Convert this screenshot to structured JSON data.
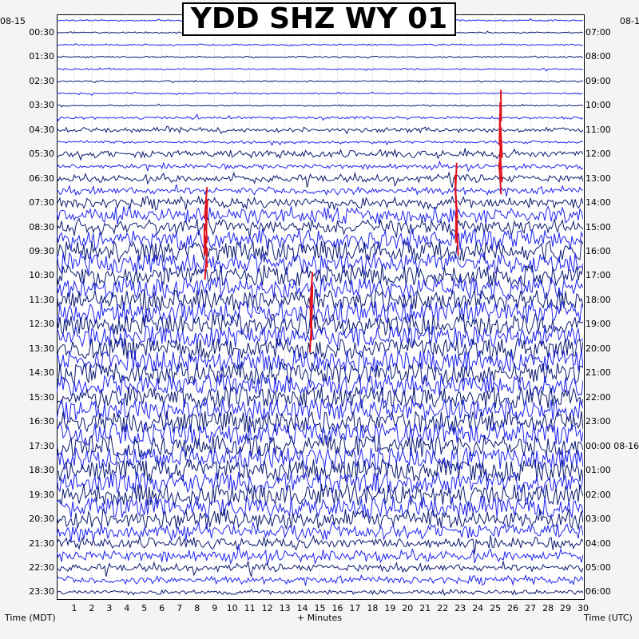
{
  "title": "YDD SHZ WY 01",
  "left_date": "08-15",
  "right_date": "08-1",
  "right_date_mid": "08-16",
  "xaxis": {
    "left_label": "Time (MDT)",
    "center_label": "+ Minutes",
    "right_label": "Time (UTC)",
    "ticks": [
      "1",
      "2",
      "3",
      "4",
      "5",
      "6",
      "7",
      "8",
      "9",
      "10",
      "11",
      "12",
      "13",
      "14",
      "15",
      "16",
      "17",
      "18",
      "19",
      "20",
      "21",
      "22",
      "23",
      "24",
      "25",
      "26",
      "27",
      "28",
      "29",
      "30"
    ]
  },
  "colors": {
    "dark": "#0b1a6e",
    "bright": "#1f24f0",
    "event": "#e0101a",
    "grid": "#9a9a9a"
  },
  "chart_data": {
    "type": "helicorder",
    "title": "YDD SHZ WY 01",
    "xlabel": "+ Minutes",
    "xlim": [
      0,
      30
    ],
    "row_minutes": 30,
    "rows_count": 48,
    "left_time_labels": [
      "00:30",
      "01:30",
      "02:30",
      "03:30",
      "04:30",
      "05:30",
      "06:30",
      "07:30",
      "08:30",
      "09:30",
      "10:30",
      "11:30",
      "12:30",
      "13:30",
      "14:30",
      "15:30",
      "16:30",
      "17:30",
      "18:30",
      "19:30",
      "20:30",
      "21:30",
      "22:30",
      "23:30"
    ],
    "right_time_labels": [
      "07:00",
      "08:00",
      "09:00",
      "10:00",
      "11:00",
      "12:00",
      "13:00",
      "14:00",
      "15:00",
      "16:00",
      "17:00",
      "18:00",
      "19:00",
      "20:00",
      "21:00",
      "22:00",
      "23:00",
      "00:00 08-16",
      "01:00",
      "02:00",
      "03:00",
      "04:00",
      "05:00",
      "06:00"
    ],
    "row_amplitude_level": [
      1,
      1,
      1,
      1,
      1,
      1,
      1,
      1,
      2,
      3,
      2,
      4,
      3,
      4,
      4,
      5,
      6,
      6,
      7,
      8,
      8,
      8,
      8,
      8,
      9,
      9,
      9,
      9,
      9,
      9,
      9,
      9,
      9,
      9,
      9,
      9,
      9,
      9,
      9,
      9,
      8,
      7,
      6,
      5,
      5,
      4,
      4,
      3
    ],
    "events": [
      {
        "minute": 8.5,
        "rows": [
          15,
          16,
          17,
          18,
          19,
          20
        ]
      },
      {
        "minute": 25.3,
        "rows": [
          7,
          8,
          9,
          10,
          11,
          12,
          13
        ]
      },
      {
        "minute": 22.8,
        "rows": [
          13,
          14,
          15,
          16,
          17,
          18
        ]
      },
      {
        "minute": 14.5,
        "rows": [
          22,
          23,
          24,
          25,
          26
        ]
      }
    ]
  }
}
